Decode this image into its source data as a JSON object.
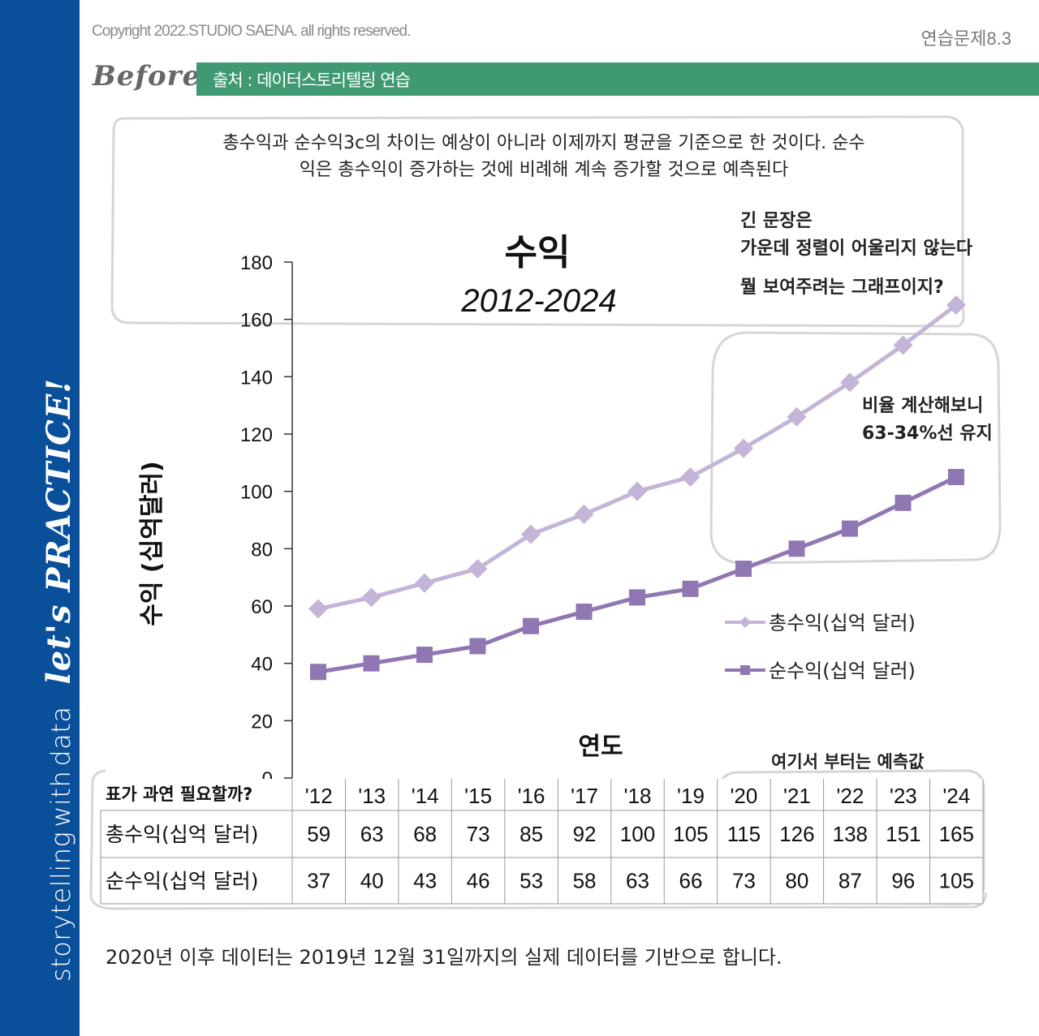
{
  "header": {
    "copyright": "Copyright 2022.STUDIO SAENA. all rights reserved.",
    "exercise": "연습문제8.3",
    "before": "Before",
    "source": "출처 : 데이터스토리텔링 연습"
  },
  "sidebar": {
    "brand_main": "storytelling",
    "brand_with": "with",
    "brand_data": "data",
    "slogan": "let's PRACTICE!"
  },
  "callout": {
    "text_line1": "총수익과 순수익3c의 차이는 예상이 아니라 이제까지 평균을 기준으로 한 것이다. 순수",
    "text_line2": "익은 총수익이 증가하는 것에 비례해 계속 증가할 것으로 예측된다"
  },
  "notes": {
    "note1_line1": "긴 문장은",
    "note1_line2": "가운데 정렬이 어울리지 않는다",
    "note2": "뭘 보여주려는 그래프이지?",
    "note3_line1": "비율 계산해보니",
    "note3_line2": "63-34%선 유지",
    "note4": "여기서 부터는 예측값",
    "note5": "표가 과연 필요할까?"
  },
  "footnote": "2020년 이후 데이터는 2019년 12월 31일까지의 실제 데이터를 기반으로 합니다.",
  "colors": {
    "sidebar": "#0a4f9a",
    "source_bar": "#3f9a74",
    "gross": "#c4b5d8",
    "net": "#8f77b3"
  },
  "chart_data": {
    "type": "line",
    "title": "수익",
    "subtitle": "2012-2024",
    "xlabel": "연도",
    "ylabel": "수익 (십억달러)",
    "ylim": [
      0,
      180
    ],
    "yticks": [
      0,
      20,
      40,
      60,
      80,
      100,
      120,
      140,
      160,
      180
    ],
    "categories": [
      "'12",
      "'13",
      "'14",
      "'15",
      "'16",
      "'17",
      "'18",
      "'19",
      "'20",
      "'21",
      "'22",
      "'23",
      "'24"
    ],
    "series": [
      {
        "name": "총수익(십억 달러)",
        "marker": "diamond",
        "values": [
          59,
          63,
          68,
          73,
          85,
          92,
          100,
          105,
          115,
          126,
          138,
          151,
          165
        ]
      },
      {
        "name": "순수익(십억 달러)",
        "marker": "square",
        "values": [
          37,
          40,
          43,
          46,
          53,
          58,
          63,
          66,
          73,
          80,
          87,
          96,
          105
        ]
      }
    ],
    "legend_position": "right"
  }
}
